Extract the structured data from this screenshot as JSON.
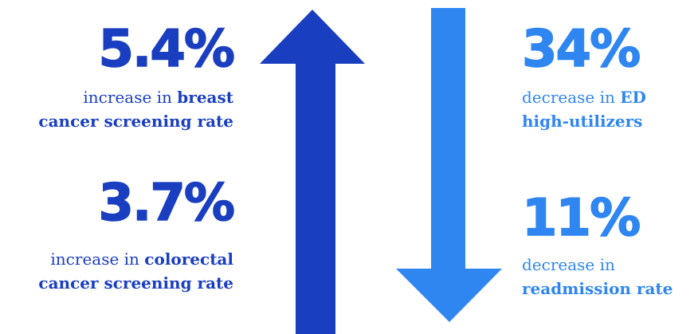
{
  "colors": {
    "dark_blue": "#1a3ec0",
    "light_blue": "#2f86f0"
  },
  "left": [
    {
      "value": "5.4%",
      "pre": "increase in ",
      "bold1": "breast",
      "bold2": "cancer screening rate"
    },
    {
      "value": "3.7%",
      "pre": "increase in ",
      "bold1": "colorectal",
      "bold2": "cancer screening rate"
    }
  ],
  "right": [
    {
      "value": "34%",
      "pre": "decrease in ",
      "bold1": "ED",
      "bold2": "high-utilizers"
    },
    {
      "value": "11%",
      "pre": "decrease in",
      "bold1": "",
      "bold2": "readmission rate"
    }
  ],
  "arrows": [
    {
      "direction": "up",
      "color": "#1a3ec0",
      "icon": "up-arrow-icon"
    },
    {
      "direction": "down",
      "color": "#2f86f0",
      "icon": "down-arrow-icon"
    }
  ]
}
